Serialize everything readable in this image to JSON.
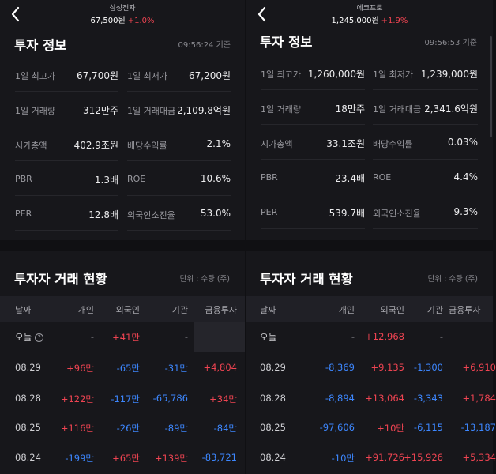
{
  "left": {
    "stock_name": "삼성전자",
    "price": "67,500원",
    "change": "+1.0%",
    "section_title": "투자 정보",
    "timestamp": "09:56:24 기준",
    "info": [
      {
        "label": "1일 최고가",
        "value": "67,700원"
      },
      {
        "label": "1일 최저가",
        "value": "67,200원"
      },
      {
        "label": "1일 거래량",
        "value": "312만주"
      },
      {
        "label": "1일 거래대금",
        "value": "2,109.8억원"
      },
      {
        "label": "시가총액",
        "value": "402.9조원"
      },
      {
        "label": "배당수익률",
        "value": "2.1%"
      },
      {
        "label": "PBR",
        "value": "1.3배"
      },
      {
        "label": "ROE",
        "value": "10.6%"
      },
      {
        "label": "PER",
        "value": "12.8배"
      },
      {
        "label": "외국인소진율",
        "value": "53.0%"
      }
    ],
    "trade_title": "투자자 거래 현황",
    "unit": "단위 : 수량 (주)",
    "headers": [
      "날짜",
      "개인",
      "외국인",
      "기관",
      "금융투자"
    ],
    "rows": [
      {
        "date": "오늘",
        "cells": [
          {
            "v": "-",
            "c": "neu"
          },
          {
            "v": "+41만",
            "c": "pos"
          },
          {
            "v": "-",
            "c": "neu"
          },
          {
            "v": "",
            "c": "neu"
          }
        ]
      },
      {
        "date": "08.29",
        "cells": [
          {
            "v": "+96만",
            "c": "pos"
          },
          {
            "v": "-65만",
            "c": "neg"
          },
          {
            "v": "-31만",
            "c": "neg"
          },
          {
            "v": "+4,804",
            "c": "pos"
          }
        ]
      },
      {
        "date": "08.28",
        "cells": [
          {
            "v": "+122만",
            "c": "pos"
          },
          {
            "v": "-117만",
            "c": "neg"
          },
          {
            "v": "-65,786",
            "c": "neg"
          },
          {
            "v": "+34만",
            "c": "pos"
          }
        ]
      },
      {
        "date": "08.25",
        "cells": [
          {
            "v": "+116만",
            "c": "pos"
          },
          {
            "v": "-26만",
            "c": "neg"
          },
          {
            "v": "-89만",
            "c": "neg"
          },
          {
            "v": "-84만",
            "c": "neg"
          }
        ]
      },
      {
        "date": "08.24",
        "cells": [
          {
            "v": "-199만",
            "c": "neg"
          },
          {
            "v": "+65만",
            "c": "pos"
          },
          {
            "v": "+139만",
            "c": "pos"
          },
          {
            "v": "-83,721",
            "c": "neg"
          }
        ]
      }
    ]
  },
  "right": {
    "stock_name": "에코프로",
    "price": "1,245,000원",
    "change": "+1.9%",
    "section_title": "투자 정보",
    "timestamp": "09:56:53 기준",
    "info": [
      {
        "label": "1일 최고가",
        "value": "1,260,000원"
      },
      {
        "label": "1일 최저가",
        "value": "1,239,000원"
      },
      {
        "label": "1일 거래량",
        "value": "18만주"
      },
      {
        "label": "1일 거래대금",
        "value": "2,341.6억원"
      },
      {
        "label": "시가총액",
        "value": "33.1조원"
      },
      {
        "label": "배당수익률",
        "value": "0.03%"
      },
      {
        "label": "PBR",
        "value": "23.4배"
      },
      {
        "label": "ROE",
        "value": "4.4%"
      },
      {
        "label": "PER",
        "value": "539.7배"
      },
      {
        "label": "외국인소진율",
        "value": "9.3%"
      }
    ],
    "trade_title": "투자자 거래 현황",
    "unit": "단위 : 수량 (주)",
    "headers": [
      "날짜",
      "개인",
      "외국인",
      "기관",
      "금융투자"
    ],
    "rows": [
      {
        "date": "오늘",
        "cells": [
          {
            "v": "-",
            "c": "neu"
          },
          {
            "v": "+12,968",
            "c": "pos"
          },
          {
            "v": "-",
            "c": "neu"
          },
          {
            "v": "",
            "c": "neu"
          }
        ]
      },
      {
        "date": "08.29",
        "cells": [
          {
            "v": "-8,369",
            "c": "neg"
          },
          {
            "v": "+9,135",
            "c": "pos"
          },
          {
            "v": "-1,300",
            "c": "neg"
          },
          {
            "v": "+6,910",
            "c": "pos"
          }
        ]
      },
      {
        "date": "08.28",
        "cells": [
          {
            "v": "-8,894",
            "c": "neg"
          },
          {
            "v": "+13,064",
            "c": "pos"
          },
          {
            "v": "-3,343",
            "c": "neg"
          },
          {
            "v": "+1,784",
            "c": "pos"
          }
        ]
      },
      {
        "date": "08.25",
        "cells": [
          {
            "v": "-97,606",
            "c": "neg"
          },
          {
            "v": "+10만",
            "c": "pos"
          },
          {
            "v": "-6,115",
            "c": "neg"
          },
          {
            "v": "-13,187",
            "c": "neg"
          }
        ]
      },
      {
        "date": "08.24",
        "cells": [
          {
            "v": "-10만",
            "c": "neg"
          },
          {
            "v": "+91,726",
            "c": "pos"
          },
          {
            "v": "+15,926",
            "c": "pos"
          },
          {
            "v": "+5,334",
            "c": "pos"
          }
        ]
      }
    ]
  },
  "colors": {
    "positive": "#f04452",
    "negative": "#3d87ff",
    "background": "#17171b"
  },
  "icons": {
    "back": "chevron-left-icon",
    "help": "help-circle-icon"
  }
}
